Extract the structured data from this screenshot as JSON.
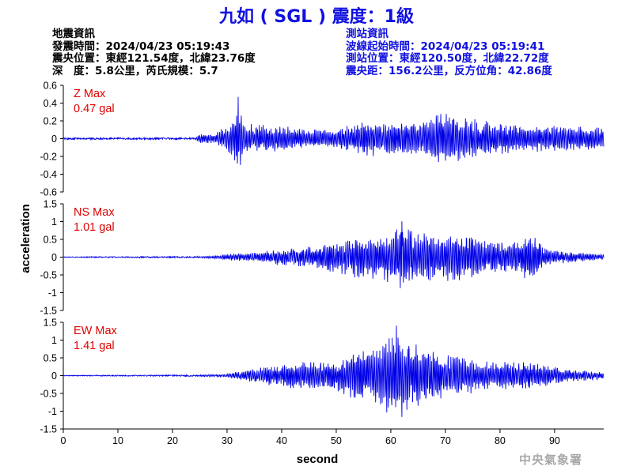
{
  "title": "九如 ( SGL ) 震度：1級",
  "quake_info": {
    "heading": "地震資訊",
    "origin_time": "發震時間：2024/04/23 05:19:43",
    "epicenter": "震央位置：東經121.54度，北緯23.76度",
    "depth_magnitude": "深　度：5.8公里，芮氏規模：5.7"
  },
  "station_info": {
    "heading": "測站資訊",
    "wave_start": "波線起始時間：2024/04/23 05:19:41",
    "station_location": "測站位置：東經120.50度，北緯22.72度",
    "distance_azimuth": "震央距：156.2公里，反方位角：42.86度"
  },
  "agency": "中央氣象署",
  "colors": {
    "title": "#1010e0",
    "trace": "#0000e6",
    "max_label": "#e00000",
    "agency": "#a9a9a9"
  },
  "chart_data": {
    "type": "line",
    "xlabel": "second",
    "ylabel": "acceleration",
    "xlim": [
      0,
      99
    ],
    "xticks": [
      0,
      10,
      20,
      30,
      40,
      50,
      60,
      70,
      80,
      90
    ],
    "grid": false,
    "panels": [
      {
        "component": "Z",
        "max_label": "Z Max",
        "max_value": "0.47 gal",
        "ylim": [
          -0.6,
          0.6
        ],
        "yticks": [
          -0.6,
          -0.4,
          -0.2,
          0,
          0.2,
          0.4,
          0.6
        ],
        "ytick_labels": [
          "-0.6",
          "-0.4",
          "-0.2",
          "0",
          "0.2",
          "0.4",
          "0.6"
        ],
        "peak": 0.47,
        "onset": 24,
        "envelope": [
          [
            0,
            0.01
          ],
          [
            24,
            0.01
          ],
          [
            25,
            0.05
          ],
          [
            28,
            0.07
          ],
          [
            31,
            0.2
          ],
          [
            32,
            0.42
          ],
          [
            33,
            0.2
          ],
          [
            35,
            0.16
          ],
          [
            40,
            0.15
          ],
          [
            45,
            0.1
          ],
          [
            50,
            0.12
          ],
          [
            55,
            0.2
          ],
          [
            60,
            0.2
          ],
          [
            65,
            0.2
          ],
          [
            69,
            0.3
          ],
          [
            75,
            0.23
          ],
          [
            80,
            0.18
          ],
          [
            85,
            0.16
          ],
          [
            90,
            0.15
          ],
          [
            95,
            0.14
          ],
          [
            99,
            0.14
          ]
        ]
      },
      {
        "component": "NS",
        "max_label": "NS Max",
        "max_value": "1.01 gal",
        "ylim": [
          -1.5,
          1.5
        ],
        "yticks": [
          -1.5,
          -1,
          -0.5,
          0,
          0.5,
          1,
          1.5
        ],
        "ytick_labels": [
          "-1.5",
          "-1",
          "-0.5",
          "0",
          "0.5",
          "1",
          "1.5"
        ],
        "peak": 1.01,
        "onset": 24,
        "envelope": [
          [
            0,
            0.01
          ],
          [
            15,
            0.02
          ],
          [
            24,
            0.02
          ],
          [
            28,
            0.05
          ],
          [
            31,
            0.1
          ],
          [
            35,
            0.13
          ],
          [
            40,
            0.25
          ],
          [
            45,
            0.3
          ],
          [
            50,
            0.5
          ],
          [
            55,
            0.62
          ],
          [
            60,
            0.72
          ],
          [
            62,
            0.95
          ],
          [
            65,
            0.72
          ],
          [
            70,
            0.68
          ],
          [
            75,
            0.65
          ],
          [
            80,
            0.42
          ],
          [
            84,
            0.45
          ],
          [
            85,
            0.85
          ],
          [
            88,
            0.3
          ],
          [
            90,
            0.2
          ],
          [
            95,
            0.12
          ],
          [
            99,
            0.1
          ]
        ]
      },
      {
        "component": "EW",
        "max_label": "EW Max",
        "max_value": "1.41 gal",
        "ylim": [
          -1.5,
          1.5
        ],
        "yticks": [
          -1.5,
          -1,
          -0.5,
          0,
          0.5,
          1,
          1.5
        ],
        "ytick_labels": [
          "-1.5",
          "-1",
          "-0.5",
          "0",
          "0.5",
          "1",
          "1.5"
        ],
        "peak": 1.41,
        "onset": 24,
        "envelope": [
          [
            0,
            0.01
          ],
          [
            24,
            0.02
          ],
          [
            30,
            0.05
          ],
          [
            33,
            0.15
          ],
          [
            35,
            0.2
          ],
          [
            40,
            0.35
          ],
          [
            45,
            0.4
          ],
          [
            50,
            0.45
          ],
          [
            53,
            0.7
          ],
          [
            57,
            0.8
          ],
          [
            60,
            1.2
          ],
          [
            61,
            1.4
          ],
          [
            63,
            1.1
          ],
          [
            66,
            0.9
          ],
          [
            70,
            0.6
          ],
          [
            75,
            0.5
          ],
          [
            80,
            0.4
          ],
          [
            85,
            0.4
          ],
          [
            90,
            0.25
          ],
          [
            95,
            0.15
          ],
          [
            99,
            0.12
          ]
        ]
      }
    ]
  }
}
